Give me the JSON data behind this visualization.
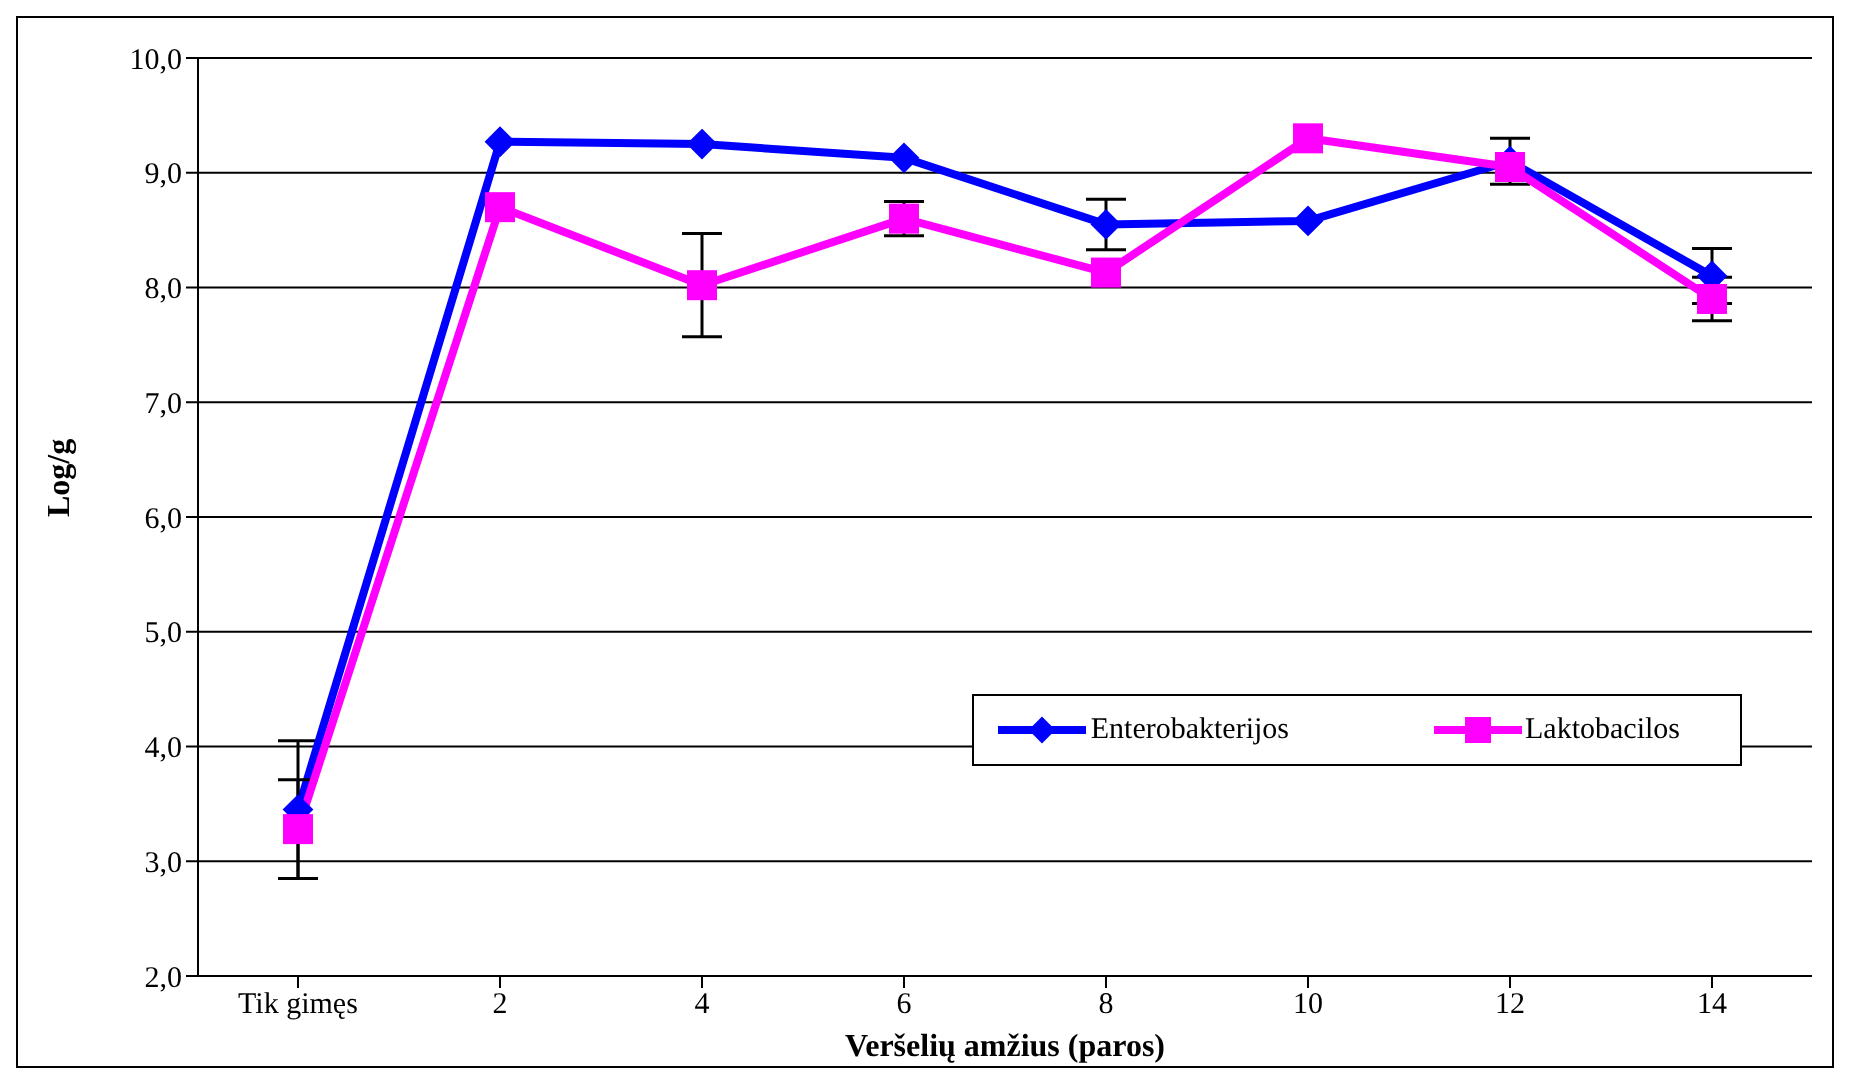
{
  "chart_data": {
    "type": "line",
    "xlabel": "Veršelių amžius (paros)",
    "ylabel": "Log/g",
    "categories": [
      "Tik gimęs",
      "2",
      "4",
      "6",
      "8",
      "10",
      "12",
      "14"
    ],
    "series": [
      {
        "name": "Enterobakterijos",
        "color": "#0000ff",
        "marker": "diamond",
        "values": [
          3.45,
          9.27,
          9.25,
          9.13,
          8.55,
          8.58,
          9.1,
          8.1
        ],
        "errors": [
          0.6,
          null,
          null,
          null,
          0.22,
          null,
          0.2,
          0.24
        ]
      },
      {
        "name": "Laktobacilos",
        "color": "#ff00ff",
        "marker": "square",
        "values": [
          3.28,
          8.7,
          8.02,
          8.6,
          8.13,
          9.3,
          9.05,
          7.9
        ],
        "errors": [
          0.43,
          null,
          0.45,
          0.15,
          null,
          null,
          null,
          0.19
        ]
      }
    ],
    "ylim": [
      2,
      10
    ],
    "yticks": [
      {
        "value": 2,
        "label": "2,0"
      },
      {
        "value": 3,
        "label": "3,0"
      },
      {
        "value": 4,
        "label": "4,0"
      },
      {
        "value": 5,
        "label": "5,0"
      },
      {
        "value": 6,
        "label": "6,0"
      },
      {
        "value": 7,
        "label": "7,0"
      },
      {
        "value": 8,
        "label": "8,0"
      },
      {
        "value": 9,
        "label": "9,0"
      },
      {
        "value": 10,
        "label": "10,0"
      }
    ],
    "grid": "y",
    "legend": "bottom right",
    "line_style": "solid"
  }
}
